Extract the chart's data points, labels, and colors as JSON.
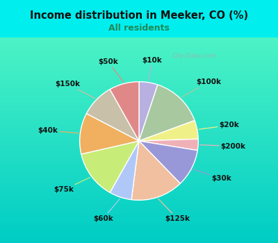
{
  "title": "Income distribution in Meeker, CO (%)",
  "subtitle": "All residents",
  "title_color": "#111111",
  "subtitle_color": "#228855",
  "bg_cyan": "#00eeee",
  "labels": [
    "$10k",
    "$100k",
    "$20k",
    "$200k",
    "$30k",
    "$125k",
    "$60k",
    "$75k",
    "$40k",
    "$150k",
    "$50k"
  ],
  "sizes": [
    5,
    14,
    5,
    3,
    10,
    14,
    6,
    13,
    11,
    9,
    8
  ],
  "colors": [
    "#b8b0e0",
    "#a8c8a0",
    "#f0f088",
    "#f0b0b8",
    "#9898d8",
    "#f0c0a0",
    "#b0c8f8",
    "#c8ec78",
    "#f0b060",
    "#c8c0a8",
    "#e08888"
  ],
  "label_fontsize": 7.5,
  "label_color": "#111111",
  "watermark": "City-Data.com"
}
